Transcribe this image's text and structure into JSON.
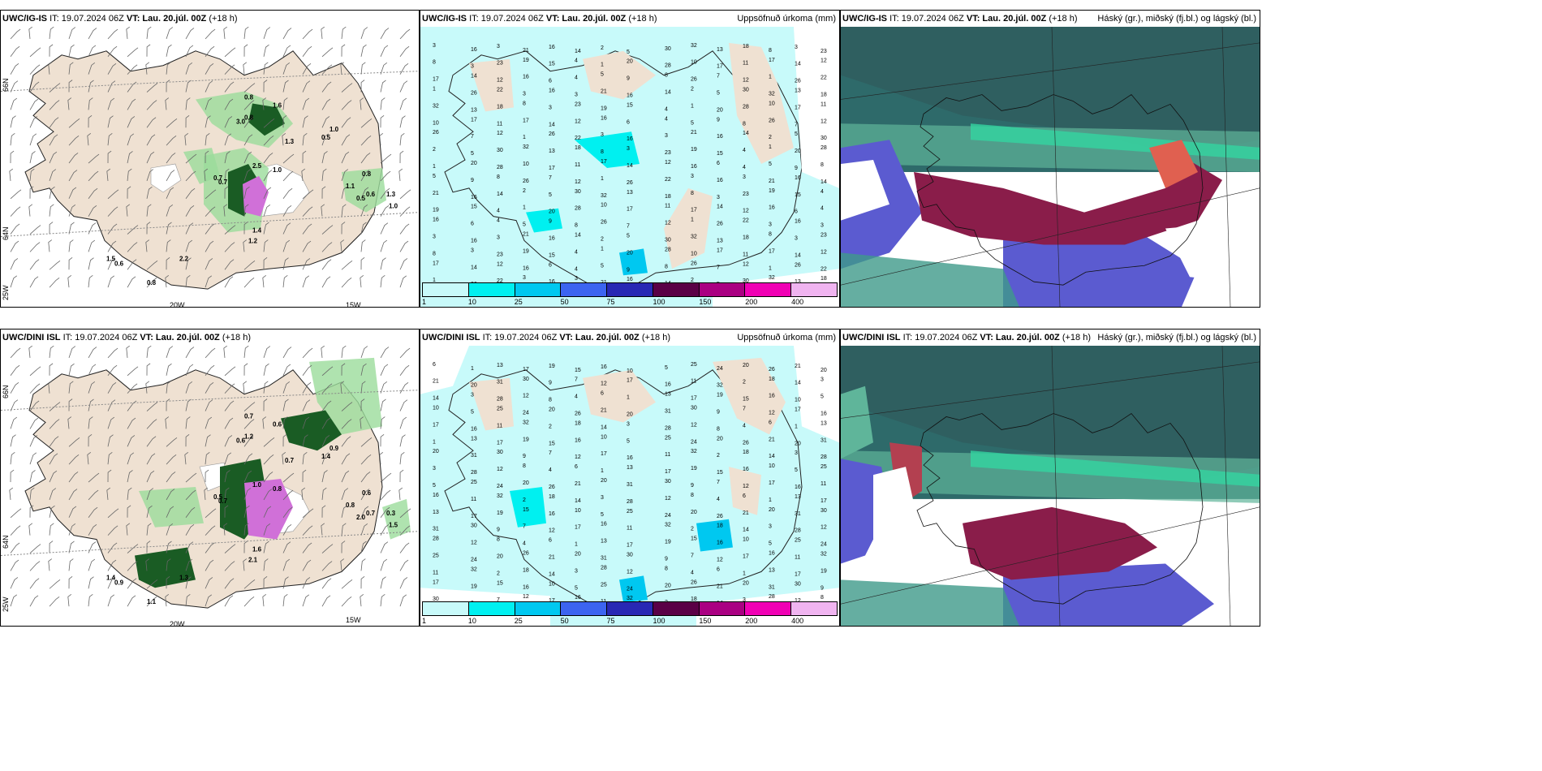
{
  "panels": [
    {
      "model": "UWC/IG-IS",
      "it": "IT: 19.07.2024 06Z",
      "vt_label": "VT:",
      "vt": "Lau. 20.júl. 00Z",
      "lead": "(+18 h)",
      "right": "",
      "type": "wind"
    },
    {
      "model": "UWC/IG-IS",
      "it": "IT: 19.07.2024 06Z",
      "vt_label": "VT:",
      "vt": "Lau. 20.júl. 00Z",
      "lead": "(+18 h)",
      "right": "Uppsöfnuð úrkoma (mm)",
      "type": "precip"
    },
    {
      "model": "UWC/IG-IS",
      "it": "IT: 19.07.2024 06Z",
      "vt_label": "VT:",
      "vt": "Lau. 20.júl. 00Z",
      "lead": "(+18 h)",
      "right": "Háský (gr.), miðský (fj.bl.) og lágský (bl.)",
      "type": "cloud"
    },
    {
      "model": "UWC/DINI ISL",
      "it": "IT: 19.07.2024 06Z",
      "vt_label": "VT:",
      "vt": "Lau. 20.júl. 00Z",
      "lead": "(+18 h)",
      "right": "",
      "type": "wind"
    },
    {
      "model": "UWC/DINI ISL",
      "it": "IT: 19.07.2024 06Z",
      "vt_label": "VT:",
      "vt": "Lau. 20.júl. 00Z",
      "lead": "(+18 h)",
      "right": "Uppsöfnuð úrkoma (mm)",
      "type": "precip"
    },
    {
      "model": "UWC/DINI ISL",
      "it": "IT: 19.07.2024 06Z",
      "vt_label": "VT:",
      "vt": "Lau. 20.júl. 00Z",
      "lead": "(+18 h)",
      "right": "Háský (gr.), miðský (fj.bl.) og lágský (bl.)",
      "type": "cloud"
    }
  ],
  "axes": {
    "lat66": "66N",
    "lat64": "64N",
    "lon25": "25W",
    "lon20": "20W",
    "lon15": "15W"
  },
  "colorbar": {
    "ticks": [
      "1",
      "10",
      "25",
      "50",
      "75",
      "100",
      "150",
      "200",
      "400"
    ],
    "colors": [
      "#c8fafa",
      "#00f0f0",
      "#00c8f0",
      "#3c64f0",
      "#2828b4",
      "#5a0046",
      "#aa0082",
      "#f000b4",
      "#f0b4f0"
    ]
  },
  "wind_labels_top": [
    "0.8",
    "1.6",
    "0.8",
    "3.0",
    "1.0",
    "0.5",
    "1.3",
    "0.7",
    "0.7",
    "2.5",
    "1.0",
    "1.1",
    "0.8",
    "0.6",
    "0.5",
    "1.3",
    "1.0",
    "1.2",
    "1.4",
    "1.5",
    "0.6",
    "0.8",
    "2.2"
  ],
  "wind_labels_bottom": [
    "0.7",
    "0.6",
    "1.2",
    "0.6",
    "0.9",
    "1.4",
    "0.7",
    "0.5",
    "0.7",
    "1.0",
    "0.8",
    "0.8",
    "0.6",
    "0.7",
    "2.0",
    "0.3",
    "1.5",
    "2.1",
    "1.6",
    "1.4",
    "0.9",
    "1.1",
    "1.3"
  ],
  "precip_labels_top": [
    "3",
    "5",
    "20",
    "30",
    "1",
    "14",
    "23",
    "21",
    "9",
    "28",
    "32",
    "26",
    "12",
    "19",
    "16",
    "8",
    "10",
    "13",
    "22",
    "16",
    "15",
    "14",
    "26",
    "17",
    "18",
    "3",
    "6",
    "4",
    "2",
    "7",
    "11",
    "8",
    "16",
    "4",
    "1",
    "5",
    "12",
    "17",
    "3"
  ],
  "precip_labels_bottom": [
    "1",
    "2",
    "31",
    "16",
    "12",
    "17",
    "20",
    "13",
    "18",
    "30",
    "10",
    "8",
    "16",
    "26",
    "17",
    "14",
    "9",
    "5",
    "4",
    "11",
    "21",
    "19",
    "3",
    "7",
    "25",
    "6",
    "32",
    "20",
    "15",
    "28",
    "12",
    "24"
  ]
}
